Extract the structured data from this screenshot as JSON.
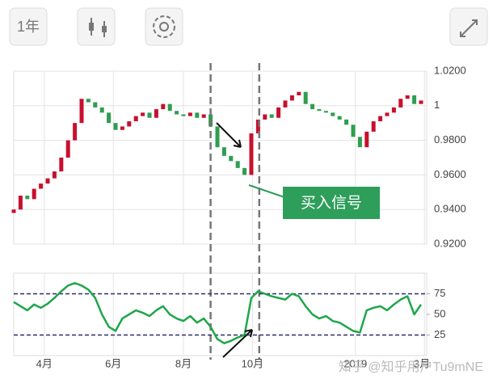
{
  "toolbar": {
    "range_button": "1年"
  },
  "watermark": "知乎 @知乎用户Tu9mNE",
  "chart_data": [
    {
      "type": "candlestick",
      "annotation": "买入信号",
      "up_color": "#c8102e",
      "down_color": "#2e9e4f",
      "xlim": [
        0,
        365
      ],
      "xticks": [
        27,
        88,
        150,
        211,
        302,
        363
      ],
      "markers_x": [
        174,
        217
      ],
      "ylim": [
        0.92,
        1.02
      ],
      "yticks": [
        {
          "value": 0.92,
          "label": "0.9200"
        },
        {
          "value": 0.94,
          "label": "0.9400"
        },
        {
          "value": 0.96,
          "label": "0.9600"
        },
        {
          "value": 0.98,
          "label": "0.9800"
        },
        1,
        {
          "value": 1.02,
          "label": "1.0200"
        }
      ],
      "grid": true,
      "x": [
        0,
        6,
        12,
        18,
        24,
        30,
        36,
        42,
        48,
        54,
        60,
        66,
        72,
        78,
        84,
        90,
        96,
        102,
        108,
        114,
        120,
        126,
        132,
        138,
        144,
        150,
        156,
        162,
        168,
        174,
        180,
        186,
        192,
        198,
        204,
        210,
        216,
        222,
        228,
        234,
        240,
        246,
        252,
        258,
        264,
        270,
        276,
        282,
        288,
        294,
        300,
        306,
        312,
        318,
        324,
        330,
        336,
        342,
        348,
        354,
        360
      ],
      "open": [
        0.938,
        0.94,
        0.948,
        0.946,
        0.952,
        0.955,
        0.958,
        0.962,
        0.97,
        0.98,
        0.99,
        1.004,
        1.002,
        0.999,
        0.996,
        0.99,
        0.986,
        0.988,
        0.991,
        0.994,
        0.996,
        0.993,
        0.998,
        1.001,
        0.997,
        0.995,
        0.994,
        0.996,
        0.993,
        0.995,
        0.988,
        0.976,
        0.971,
        0.968,
        0.964,
        0.96,
        0.984,
        0.992,
        0.995,
        0.993,
        0.999,
        1.003,
        1.006,
        1.008,
        1.001,
        0.998,
        0.997,
        0.996,
        0.994,
        0.992,
        0.989,
        0.982,
        0.976,
        0.985,
        0.991,
        0.994,
        0.996,
        0.999,
        1.004,
        1.006,
        1.001
      ],
      "close": [
        0.94,
        0.948,
        0.946,
        0.952,
        0.955,
        0.958,
        0.962,
        0.97,
        0.98,
        0.99,
        1.004,
        1.002,
        0.999,
        0.996,
        0.99,
        0.986,
        0.988,
        0.991,
        0.994,
        0.996,
        0.993,
        0.998,
        1.001,
        0.997,
        0.995,
        0.994,
        0.996,
        0.993,
        0.995,
        0.988,
        0.976,
        0.971,
        0.968,
        0.964,
        0.96,
        0.984,
        0.992,
        0.995,
        0.993,
        0.999,
        1.003,
        1.006,
        1.008,
        1.001,
        0.998,
        0.997,
        0.996,
        0.994,
        0.992,
        0.989,
        0.982,
        0.976,
        0.985,
        0.991,
        0.994,
        0.996,
        0.999,
        1.004,
        1.006,
        1.001,
        1.003
      ]
    },
    {
      "type": "line",
      "xlim": [
        0,
        365
      ],
      "xticks": [
        {
          "value": 27,
          "label": "4月"
        },
        {
          "value": 88,
          "label": "6月"
        },
        {
          "value": 150,
          "label": "8月"
        },
        {
          "value": 211,
          "label": "10月"
        },
        {
          "value": 302,
          "label": "2019"
        },
        {
          "value": 363,
          "label": "3月"
        }
      ],
      "ylim": [
        0,
        100
      ],
      "yticks": [
        25,
        50,
        75
      ],
      "levels": [
        25,
        75
      ],
      "level_color": "#2c2c6e",
      "x": [
        0,
        6,
        12,
        18,
        24,
        30,
        36,
        42,
        48,
        54,
        60,
        66,
        72,
        78,
        84,
        90,
        96,
        102,
        108,
        114,
        120,
        126,
        132,
        138,
        144,
        150,
        156,
        162,
        168,
        174,
        180,
        186,
        192,
        198,
        204,
        210,
        216,
        222,
        228,
        234,
        240,
        246,
        252,
        258,
        264,
        270,
        276,
        282,
        288,
        294,
        300,
        306,
        312,
        318,
        324,
        330,
        336,
        342,
        348,
        354,
        360
      ],
      "series": [
        {
          "color": "#1fa64a",
          "values": [
            65,
            60,
            55,
            62,
            58,
            63,
            70,
            78,
            85,
            88,
            85,
            80,
            70,
            50,
            35,
            30,
            45,
            50,
            55,
            52,
            48,
            55,
            60,
            50,
            45,
            42,
            48,
            40,
            45,
            35,
            20,
            15,
            18,
            22,
            25,
            70,
            78,
            75,
            72,
            70,
            68,
            75,
            72,
            60,
            50,
            45,
            48,
            42,
            40,
            35,
            30,
            28,
            55,
            58,
            60,
            55,
            62,
            68,
            72,
            50,
            62
          ]
        }
      ]
    }
  ]
}
